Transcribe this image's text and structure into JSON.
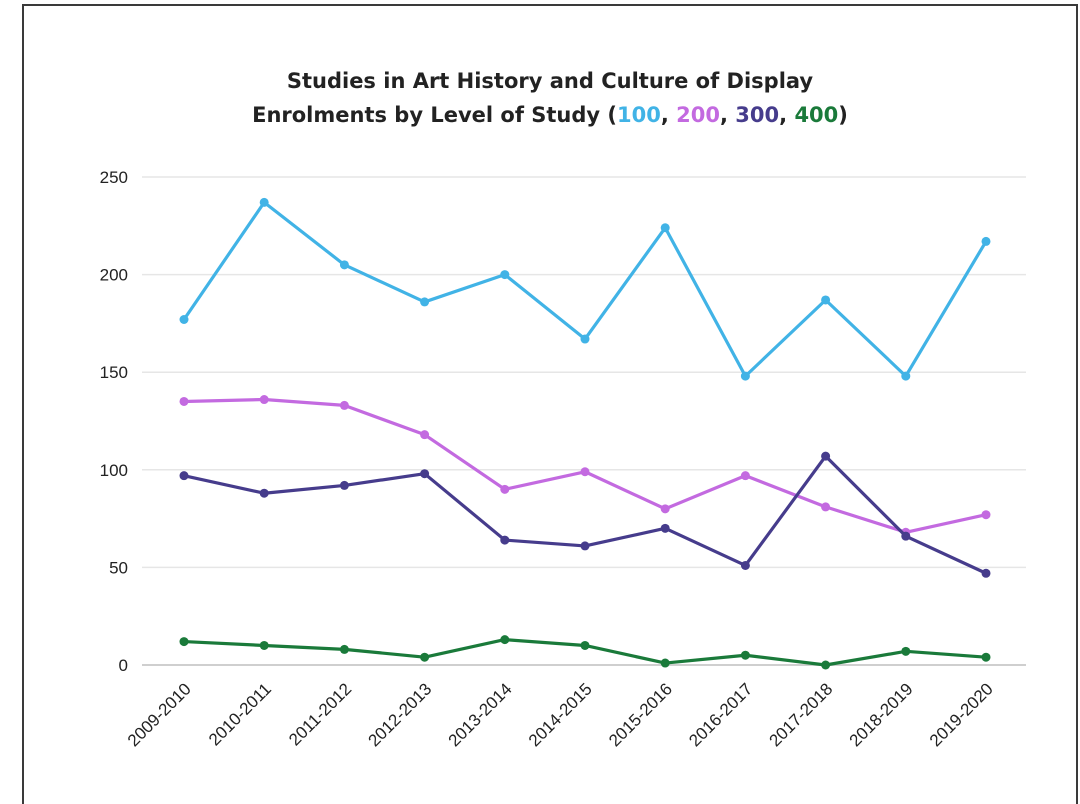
{
  "chart_data": {
    "type": "line",
    "title_line1": "Studies in Art History and Culture of Display",
    "title_line2_prefix": "Enrolments by Level of Study (",
    "title_line2_suffix": ")",
    "legend_labels": [
      "100",
      "200",
      "300",
      "400"
    ],
    "categories": [
      "2009-2010",
      "2010-2011",
      "2011-2012",
      "2012-2013",
      "2013-2014",
      "2014-2015",
      "2015-2016",
      "2016-2017",
      "2017-2018",
      "2018-2019",
      "2019-2020"
    ],
    "yticks": [
      0,
      50,
      100,
      150,
      200,
      250
    ],
    "ylim": [
      0,
      250
    ],
    "grid": true,
    "series": [
      {
        "name": "100",
        "color": "#41b3e6",
        "values": [
          177,
          237,
          205,
          186,
          200,
          167,
          224,
          148,
          187,
          148,
          217
        ]
      },
      {
        "name": "200",
        "color": "#c36ae0",
        "values": [
          135,
          136,
          133,
          118,
          90,
          99,
          80,
          97,
          81,
          68,
          77
        ]
      },
      {
        "name": "300",
        "color": "#463c8c",
        "values": [
          97,
          88,
          92,
          98,
          64,
          61,
          70,
          51,
          107,
          66,
          47
        ]
      },
      {
        "name": "400",
        "color": "#1a7a3a",
        "values": [
          12,
          10,
          8,
          4,
          13,
          10,
          1,
          5,
          0,
          7,
          4
        ]
      }
    ]
  }
}
